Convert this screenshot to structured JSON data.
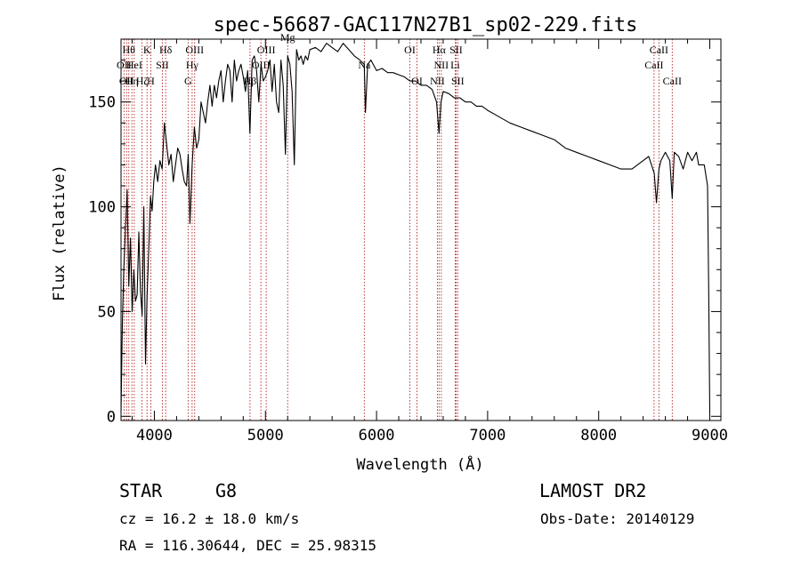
{
  "chart_data": {
    "type": "line",
    "title": "spec-56687-GAC117N27B1_sp02-229.fits",
    "xlabel": "Wavelength (Å)",
    "ylabel": "Flux (relative)",
    "xlim": [
      3700,
      9100
    ],
    "ylim": [
      -2,
      180
    ],
    "x_ticks": [
      4000,
      5000,
      6000,
      7000,
      8000,
      9000
    ],
    "y_ticks": [
      0,
      50,
      100,
      150
    ],
    "grid": false,
    "line_color": "#000000",
    "marker_color": "#b22222",
    "series": [
      {
        "x": [
          3700,
          3712,
          3725,
          3740,
          3755,
          3770,
          3785,
          3800,
          3815,
          3830,
          3845,
          3860,
          3875,
          3890,
          3905,
          3920,
          3935,
          3950,
          3965,
          3980,
          3995,
          4010,
          4030,
          4050,
          4070,
          4090,
          4110,
          4130,
          4150,
          4170,
          4190,
          4210,
          4230,
          4250,
          4270,
          4290,
          4305,
          4320,
          4340,
          4360,
          4380,
          4400,
          4420,
          4440,
          4460,
          4480,
          4500,
          4520,
          4540,
          4560,
          4580,
          4600,
          4620,
          4640,
          4660,
          4680,
          4700,
          4720,
          4740,
          4760,
          4780,
          4800,
          4820,
          4840,
          4860,
          4880,
          4900,
          4920,
          4940,
          4960,
          4980,
          5000,
          5020,
          5040,
          5060,
          5080,
          5100,
          5120,
          5140,
          5160,
          5180,
          5200,
          5220,
          5240,
          5260,
          5280,
          5300,
          5320,
          5340,
          5360,
          5380,
          5400,
          5450,
          5500,
          5550,
          5600,
          5650,
          5700,
          5750,
          5800,
          5850,
          5890,
          5900,
          5920,
          5950,
          6000,
          6050,
          6100,
          6150,
          6200,
          6250,
          6300,
          6350,
          6400,
          6450,
          6500,
          6540,
          6563,
          6580,
          6600,
          6650,
          6700,
          6750,
          6800,
          6850,
          6900,
          6950,
          7000,
          7100,
          7200,
          7300,
          7400,
          7500,
          7600,
          7700,
          7800,
          7900,
          8000,
          8100,
          8200,
          8300,
          8400,
          8450,
          8500,
          8520,
          8542,
          8560,
          8600,
          8640,
          8662,
          8680,
          8720,
          8760,
          8800,
          8840,
          8880,
          8900,
          8950,
          8980,
          8990,
          9000
        ],
        "y": [
          2,
          45,
          70,
          90,
          108,
          62,
          85,
          50,
          70,
          55,
          58,
          88,
          60,
          48,
          100,
          25,
          58,
          80,
          105,
          98,
          112,
          120,
          112,
          122,
          118,
          140,
          130,
          120,
          125,
          112,
          120,
          128,
          125,
          118,
          112,
          110,
          125,
          92,
          120,
          138,
          128,
          132,
          150,
          145,
          140,
          150,
          158,
          148,
          158,
          152,
          160,
          165,
          150,
          160,
          168,
          165,
          150,
          170,
          160,
          165,
          168,
          162,
          155,
          165,
          135,
          170,
          172,
          165,
          150,
          168,
          160,
          162,
          165,
          170,
          155,
          168,
          150,
          145,
          170,
          158,
          125,
          172,
          168,
          155,
          120,
          175,
          170,
          172,
          168,
          172,
          170,
          175,
          176,
          174,
          178,
          176,
          174,
          178,
          175,
          172,
          170,
          168,
          145,
          168,
          170,
          165,
          166,
          164,
          164,
          163,
          162,
          160,
          160,
          158,
          158,
          156,
          150,
          135,
          150,
          155,
          154,
          152,
          152,
          150,
          150,
          148,
          148,
          146,
          143,
          140,
          138,
          136,
          134,
          132,
          128,
          126,
          124,
          122,
          120,
          118,
          118,
          122,
          124,
          116,
          102,
          118,
          122,
          126,
          122,
          104,
          126,
          124,
          118,
          126,
          122,
          126,
          120,
          120,
          110,
          60,
          2
        ]
      }
    ],
    "lines": [
      {
        "wavelength": 3727,
        "label": "OII",
        "row": 2
      },
      {
        "wavelength": 3750,
        "label": "OII",
        "row": 3
      },
      {
        "wavelength": 3770,
        "label": "Hθ",
        "row": 1
      },
      {
        "wavelength": 3798,
        "label": "Hη",
        "row": 3
      },
      {
        "wavelength": 3819,
        "label": "HeI",
        "row": 2
      },
      {
        "wavelength": 3889,
        "label": "Hζ",
        "row": 3
      },
      {
        "wavelength": 3934,
        "label": "K",
        "row": 1
      },
      {
        "wavelength": 3968,
        "label": "H",
        "row": 3
      },
      {
        "wavelength": 4072,
        "label": "SII",
        "row": 2
      },
      {
        "wavelength": 4102,
        "label": "Hδ",
        "row": 1
      },
      {
        "wavelength": 4304,
        "label": "G",
        "row": 3
      },
      {
        "wavelength": 4340,
        "label": "Hγ",
        "row": 2
      },
      {
        "wavelength": 4363,
        "label": "OIII",
        "row": 1
      },
      {
        "wavelength": 4861,
        "label": "Hβ",
        "row": 3
      },
      {
        "wavelength": 4959,
        "label": "OIII",
        "row": 2
      },
      {
        "wavelength": 5007,
        "label": "OIII",
        "row": 1
      },
      {
        "wavelength": 5200,
        "label": "Mg",
        "row": 0
      },
      {
        "wavelength": 5890,
        "label": "Na",
        "row": 2
      },
      {
        "wavelength": 6300,
        "label": "OI",
        "row": 1
      },
      {
        "wavelength": 6364,
        "label": "OI",
        "row": 3
      },
      {
        "wavelength": 6548,
        "label": "NII",
        "row": 3
      },
      {
        "wavelength": 6563,
        "label": "Hα",
        "row": 1
      },
      {
        "wavelength": 6583,
        "label": "NII",
        "row": 2
      },
      {
        "wavelength": 6708,
        "label": "Li",
        "row": 2
      },
      {
        "wavelength": 6716,
        "label": "SII",
        "row": 1
      },
      {
        "wavelength": 6731,
        "label": "SII",
        "row": 3
      },
      {
        "wavelength": 8498,
        "label": "CaII",
        "row": 2
      },
      {
        "wavelength": 8542,
        "label": "CaII",
        "row": 1
      },
      {
        "wavelength": 8662,
        "label": "CaII",
        "row": 3
      }
    ]
  },
  "info": {
    "object_class": "STAR",
    "subclass": "G8",
    "survey": "LAMOST DR2",
    "velocity": "cz = 16.2 ± 18.0 km/s",
    "obs_date": "Obs-Date: 20140129",
    "coords": "RA = 116.30644, DEC =  25.98315"
  }
}
